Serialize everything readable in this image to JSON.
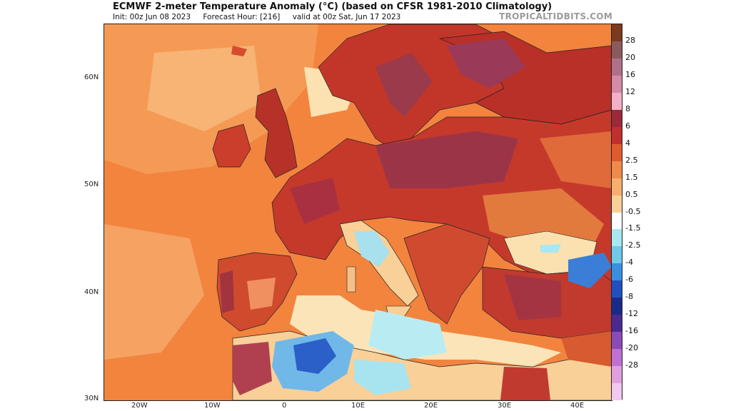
{
  "header": {
    "title": "ECMWF 2-meter Temperature Anomaly (°C) (based on CFSR 1981-2010 Climatology)",
    "init": "Init: 00z Jun 08 2023",
    "forecast_hour": "Forecast Hour: [216]",
    "valid": "valid at 00z Sat, Jun 17 2023",
    "watermark": "TROPICALTIDBITS.COM"
  },
  "axes": {
    "latitude_labels": [
      "60N",
      "50N",
      "40N",
      "30N"
    ],
    "longitude_labels": [
      "20W",
      "10W",
      "0",
      "10E",
      "20E",
      "30E",
      "40E"
    ]
  },
  "colorbar": {
    "labels": [
      "28",
      "20",
      "16",
      "12",
      "8",
      "6",
      "4",
      "2.5",
      "1.5",
      "0.5",
      "-0.5",
      "-1.5",
      "-2.5",
      "-4",
      "-6",
      "-8",
      "-12",
      "-16",
      "-20",
      "-28"
    ],
    "colors": [
      "#7a3a1e",
      "#8b5a5e",
      "#b0708a",
      "#d48aa8",
      "#f2b0c8",
      "#9a2a3a",
      "#c03030",
      "#e05a30",
      "#f08a4a",
      "#f5b070",
      "#f8d098",
      "#ffffff",
      "#a8e8f0",
      "#70c8ea",
      "#3a8ee0",
      "#2050c0",
      "#1a2a88",
      "#4a2a90",
      "#8a4ab8",
      "#c070d0",
      "#e0a0e0",
      "#f0c8f0"
    ]
  }
}
